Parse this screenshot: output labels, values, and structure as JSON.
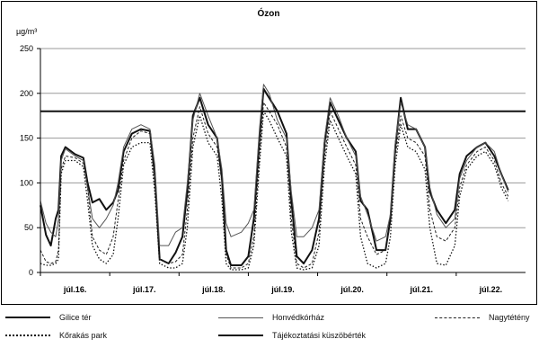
{
  "chart_data": {
    "type": "line",
    "title": "Ózon",
    "ylabel": "µg/m³",
    "ylim": [
      0,
      250
    ],
    "yticks": [
      0,
      50,
      100,
      150,
      200,
      250
    ],
    "xlim": [
      0,
      7
    ],
    "categories": [
      "júl.16.",
      "júl.17.",
      "júl.18.",
      "júl.19.",
      "júl.20.",
      "júl.21.",
      "júl.22."
    ],
    "threshold": {
      "value": 180
    },
    "grid": "horizontal",
    "legend_position": "bottom",
    "series": [
      {
        "name": "Gilice tér",
        "color": "#111111",
        "style": "solid-thick",
        "points": [
          [
            0.0,
            75
          ],
          [
            0.08,
            42
          ],
          [
            0.15,
            30
          ],
          [
            0.22,
            60
          ],
          [
            0.26,
            70
          ],
          [
            0.3,
            130
          ],
          [
            0.36,
            140
          ],
          [
            0.5,
            132
          ],
          [
            0.62,
            128
          ],
          [
            0.68,
            100
          ],
          [
            0.75,
            78
          ],
          [
            0.85,
            82
          ],
          [
            0.95,
            70
          ],
          [
            1.05,
            78
          ],
          [
            1.12,
            92
          ],
          [
            1.2,
            135
          ],
          [
            1.32,
            155
          ],
          [
            1.45,
            160
          ],
          [
            1.58,
            158
          ],
          [
            1.65,
            110
          ],
          [
            1.72,
            15
          ],
          [
            1.85,
            10
          ],
          [
            1.95,
            22
          ],
          [
            2.05,
            40
          ],
          [
            2.12,
            90
          ],
          [
            2.2,
            175
          ],
          [
            2.3,
            195
          ],
          [
            2.42,
            165
          ],
          [
            2.55,
            150
          ],
          [
            2.62,
            105
          ],
          [
            2.68,
            25
          ],
          [
            2.75,
            8
          ],
          [
            2.9,
            8
          ],
          [
            3.0,
            18
          ],
          [
            3.08,
            60
          ],
          [
            3.16,
            150
          ],
          [
            3.22,
            205
          ],
          [
            3.3,
            195
          ],
          [
            3.42,
            180
          ],
          [
            3.55,
            155
          ],
          [
            3.62,
            80
          ],
          [
            3.7,
            18
          ],
          [
            3.8,
            10
          ],
          [
            3.92,
            25
          ],
          [
            4.02,
            60
          ],
          [
            4.1,
            145
          ],
          [
            4.18,
            190
          ],
          [
            4.3,
            170
          ],
          [
            4.42,
            150
          ],
          [
            4.55,
            135
          ],
          [
            4.62,
            80
          ],
          [
            4.72,
            70
          ],
          [
            4.85,
            25
          ],
          [
            4.98,
            25
          ],
          [
            5.05,
            60
          ],
          [
            5.12,
            140
          ],
          [
            5.2,
            195
          ],
          [
            5.3,
            160
          ],
          [
            5.42,
            160
          ],
          [
            5.55,
            140
          ],
          [
            5.62,
            90
          ],
          [
            5.72,
            70
          ],
          [
            5.85,
            55
          ],
          [
            5.98,
            70
          ],
          [
            6.05,
            110
          ],
          [
            6.15,
            130
          ],
          [
            6.3,
            140
          ],
          [
            6.42,
            145
          ],
          [
            6.55,
            130
          ],
          [
            6.65,
            110
          ],
          [
            6.75,
            92
          ]
        ]
      },
      {
        "name": "Honvédkórház",
        "color": "#555555",
        "style": "solid-thin",
        "points": [
          [
            0.0,
            80
          ],
          [
            0.08,
            55
          ],
          [
            0.15,
            45
          ],
          [
            0.22,
            40
          ],
          [
            0.26,
            60
          ],
          [
            0.3,
            125
          ],
          [
            0.36,
            138
          ],
          [
            0.5,
            130
          ],
          [
            0.62,
            125
          ],
          [
            0.68,
            95
          ],
          [
            0.75,
            60
          ],
          [
            0.85,
            50
          ],
          [
            0.95,
            60
          ],
          [
            1.05,
            75
          ],
          [
            1.12,
            100
          ],
          [
            1.2,
            140
          ],
          [
            1.32,
            160
          ],
          [
            1.45,
            165
          ],
          [
            1.58,
            160
          ],
          [
            1.65,
            120
          ],
          [
            1.72,
            30
          ],
          [
            1.85,
            30
          ],
          [
            1.95,
            45
          ],
          [
            2.05,
            50
          ],
          [
            2.12,
            100
          ],
          [
            2.2,
            170
          ],
          [
            2.3,
            200
          ],
          [
            2.42,
            175
          ],
          [
            2.55,
            150
          ],
          [
            2.62,
            115
          ],
          [
            2.68,
            55
          ],
          [
            2.75,
            40
          ],
          [
            2.9,
            45
          ],
          [
            3.0,
            55
          ],
          [
            3.08,
            70
          ],
          [
            3.16,
            160
          ],
          [
            3.22,
            210
          ],
          [
            3.3,
            200
          ],
          [
            3.42,
            170
          ],
          [
            3.55,
            150
          ],
          [
            3.62,
            90
          ],
          [
            3.7,
            40
          ],
          [
            3.8,
            40
          ],
          [
            3.92,
            50
          ],
          [
            4.02,
            70
          ],
          [
            4.1,
            150
          ],
          [
            4.18,
            195
          ],
          [
            4.3,
            175
          ],
          [
            4.42,
            150
          ],
          [
            4.55,
            130
          ],
          [
            4.62,
            85
          ],
          [
            4.72,
            65
          ],
          [
            4.85,
            35
          ],
          [
            4.98,
            40
          ],
          [
            5.05,
            65
          ],
          [
            5.12,
            145
          ],
          [
            5.2,
            190
          ],
          [
            5.3,
            165
          ],
          [
            5.42,
            160
          ],
          [
            5.55,
            140
          ],
          [
            5.62,
            95
          ],
          [
            5.72,
            65
          ],
          [
            5.85,
            50
          ],
          [
            5.98,
            60
          ],
          [
            6.05,
            105
          ],
          [
            6.15,
            125
          ],
          [
            6.3,
            140
          ],
          [
            6.42,
            145
          ],
          [
            6.55,
            135
          ],
          [
            6.65,
            110
          ],
          [
            6.75,
            90
          ]
        ]
      },
      {
        "name": "Nagytétény",
        "color": "#222222",
        "style": "dashed",
        "points": [
          [
            0.0,
            25
          ],
          [
            0.08,
            12
          ],
          [
            0.15,
            10
          ],
          [
            0.22,
            12
          ],
          [
            0.26,
            25
          ],
          [
            0.3,
            115
          ],
          [
            0.36,
            130
          ],
          [
            0.5,
            128
          ],
          [
            0.62,
            122
          ],
          [
            0.68,
            95
          ],
          [
            0.75,
            40
          ],
          [
            0.85,
            25
          ],
          [
            0.95,
            20
          ],
          [
            1.05,
            40
          ],
          [
            1.12,
            80
          ],
          [
            1.2,
            125
          ],
          [
            1.32,
            150
          ],
          [
            1.45,
            158
          ],
          [
            1.58,
            155
          ],
          [
            1.65,
            100
          ],
          [
            1.72,
            15
          ],
          [
            1.85,
            10
          ],
          [
            1.95,
            12
          ],
          [
            2.05,
            20
          ],
          [
            2.12,
            70
          ],
          [
            2.2,
            150
          ],
          [
            2.3,
            185
          ],
          [
            2.42,
            155
          ],
          [
            2.55,
            140
          ],
          [
            2.62,
            100
          ],
          [
            2.68,
            20
          ],
          [
            2.75,
            5
          ],
          [
            2.9,
            5
          ],
          [
            3.0,
            10
          ],
          [
            3.08,
            40
          ],
          [
            3.16,
            130
          ],
          [
            3.22,
            190
          ],
          [
            3.3,
            180
          ],
          [
            3.42,
            165
          ],
          [
            3.55,
            140
          ],
          [
            3.62,
            60
          ],
          [
            3.7,
            10
          ],
          [
            3.8,
            5
          ],
          [
            3.92,
            10
          ],
          [
            4.02,
            45
          ],
          [
            4.1,
            130
          ],
          [
            4.18,
            180
          ],
          [
            4.3,
            160
          ],
          [
            4.42,
            140
          ],
          [
            4.55,
            120
          ],
          [
            4.62,
            60
          ],
          [
            4.72,
            40
          ],
          [
            4.85,
            20
          ],
          [
            4.98,
            25
          ],
          [
            5.05,
            55
          ],
          [
            5.12,
            130
          ],
          [
            5.2,
            175
          ],
          [
            5.3,
            150
          ],
          [
            5.42,
            145
          ],
          [
            5.55,
            130
          ],
          [
            5.62,
            70
          ],
          [
            5.72,
            40
          ],
          [
            5.85,
            35
          ],
          [
            5.98,
            50
          ],
          [
            6.05,
            95
          ],
          [
            6.15,
            120
          ],
          [
            6.3,
            135
          ],
          [
            6.42,
            140
          ],
          [
            6.55,
            125
          ],
          [
            6.65,
            100
          ],
          [
            6.75,
            85
          ]
        ]
      },
      {
        "name": "Kőrakás park",
        "color": "#111111",
        "style": "dotted",
        "points": [
          [
            0.0,
            10
          ],
          [
            0.08,
            8
          ],
          [
            0.15,
            8
          ],
          [
            0.22,
            10
          ],
          [
            0.26,
            15
          ],
          [
            0.3,
            110
          ],
          [
            0.36,
            125
          ],
          [
            0.5,
            125
          ],
          [
            0.62,
            118
          ],
          [
            0.68,
            80
          ],
          [
            0.75,
            30
          ],
          [
            0.85,
            15
          ],
          [
            0.95,
            10
          ],
          [
            1.05,
            20
          ],
          [
            1.12,
            60
          ],
          [
            1.2,
            120
          ],
          [
            1.32,
            140
          ],
          [
            1.45,
            145
          ],
          [
            1.58,
            145
          ],
          [
            1.65,
            90
          ],
          [
            1.72,
            10
          ],
          [
            1.85,
            5
          ],
          [
            1.95,
            5
          ],
          [
            2.05,
            10
          ],
          [
            2.12,
            50
          ],
          [
            2.2,
            140
          ],
          [
            2.3,
            175
          ],
          [
            2.42,
            145
          ],
          [
            2.55,
            130
          ],
          [
            2.62,
            80
          ],
          [
            2.68,
            10
          ],
          [
            2.75,
            3
          ],
          [
            2.9,
            3
          ],
          [
            3.0,
            5
          ],
          [
            3.08,
            30
          ],
          [
            3.16,
            120
          ],
          [
            3.22,
            180
          ],
          [
            3.3,
            170
          ],
          [
            3.42,
            150
          ],
          [
            3.55,
            130
          ],
          [
            3.62,
            45
          ],
          [
            3.7,
            5
          ],
          [
            3.8,
            3
          ],
          [
            3.92,
            5
          ],
          [
            4.02,
            30
          ],
          [
            4.1,
            120
          ],
          [
            4.18,
            170
          ],
          [
            4.3,
            150
          ],
          [
            4.42,
            130
          ],
          [
            4.55,
            110
          ],
          [
            4.62,
            40
          ],
          [
            4.72,
            10
          ],
          [
            4.85,
            5
          ],
          [
            4.98,
            10
          ],
          [
            5.05,
            40
          ],
          [
            5.12,
            120
          ],
          [
            5.2,
            165
          ],
          [
            5.3,
            140
          ],
          [
            5.42,
            135
          ],
          [
            5.55,
            115
          ],
          [
            5.62,
            50
          ],
          [
            5.72,
            10
          ],
          [
            5.85,
            8
          ],
          [
            5.98,
            30
          ],
          [
            6.05,
            85
          ],
          [
            6.15,
            115
          ],
          [
            6.3,
            130
          ],
          [
            6.42,
            135
          ],
          [
            6.55,
            120
          ],
          [
            6.65,
            95
          ],
          [
            6.75,
            80
          ]
        ]
      },
      {
        "name": "Tájékoztatási küszöbérték",
        "color": "#111111",
        "style": "solid-thick",
        "points": [
          [
            0,
            180
          ],
          [
            7,
            180
          ]
        ]
      }
    ]
  }
}
